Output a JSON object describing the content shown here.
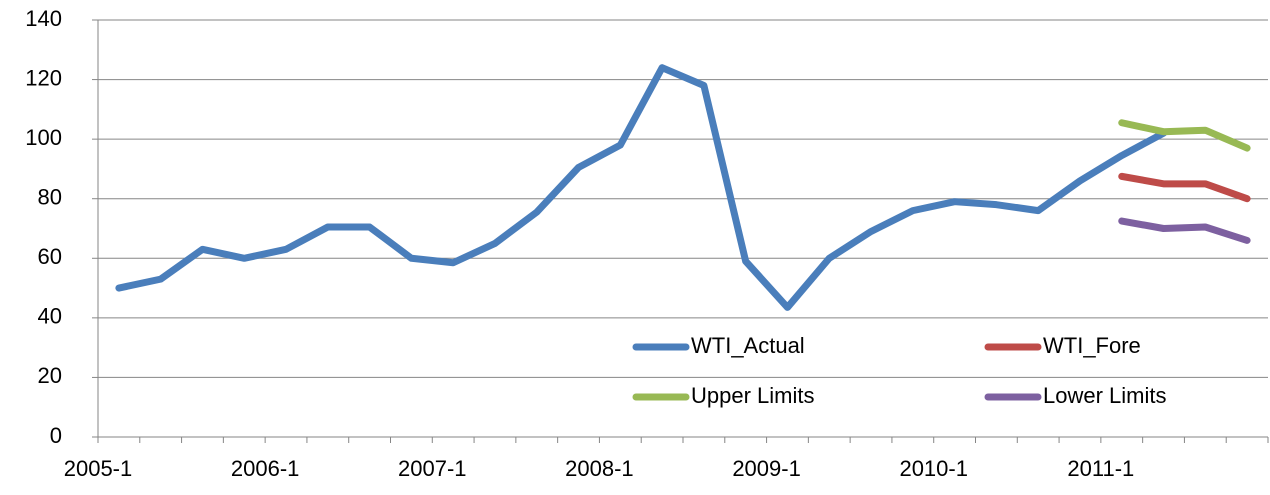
{
  "chart_data": {
    "type": "line",
    "categories": [
      "2005-1",
      null,
      null,
      null,
      "2006-1",
      null,
      null,
      null,
      "2007-1",
      null,
      null,
      null,
      "2008-1",
      null,
      null,
      null,
      "2009-1",
      null,
      null,
      null,
      "2010-1",
      null,
      null,
      null,
      "2011-1",
      null,
      null,
      null
    ],
    "series": [
      {
        "name": "WTI_Actual",
        "color": "#4a7ebb",
        "values": [
          50,
          53,
          63,
          60,
          63,
          70.5,
          70.5,
          60,
          58.5,
          65,
          75.5,
          90.5,
          98,
          124,
          118,
          59,
          43.5,
          60,
          69,
          76,
          79,
          78,
          76,
          86,
          94.5,
          102,
          null,
          null
        ]
      },
      {
        "name": "WTI_Fore",
        "color": "#be4b48",
        "values": [
          null,
          null,
          null,
          null,
          null,
          null,
          null,
          null,
          null,
          null,
          null,
          null,
          null,
          null,
          null,
          null,
          null,
          null,
          null,
          null,
          null,
          null,
          null,
          null,
          87.5,
          85,
          85,
          80
        ]
      },
      {
        "name": "Upper Limits",
        "color": "#98b954",
        "values": [
          null,
          null,
          null,
          null,
          null,
          null,
          null,
          null,
          null,
          null,
          null,
          null,
          null,
          null,
          null,
          null,
          null,
          null,
          null,
          null,
          null,
          null,
          null,
          null,
          105.5,
          102.5,
          103,
          97
        ]
      },
      {
        "name": "Lower Limits",
        "color": "#7d60a0",
        "values": [
          null,
          null,
          null,
          null,
          null,
          null,
          null,
          null,
          null,
          null,
          null,
          null,
          null,
          null,
          null,
          null,
          null,
          null,
          null,
          null,
          null,
          null,
          null,
          null,
          72.5,
          70,
          70.5,
          66
        ]
      }
    ],
    "ylim": [
      0,
      140
    ],
    "yticks": [
      0,
      20,
      40,
      60,
      80,
      100,
      120,
      140
    ],
    "grid": true
  }
}
